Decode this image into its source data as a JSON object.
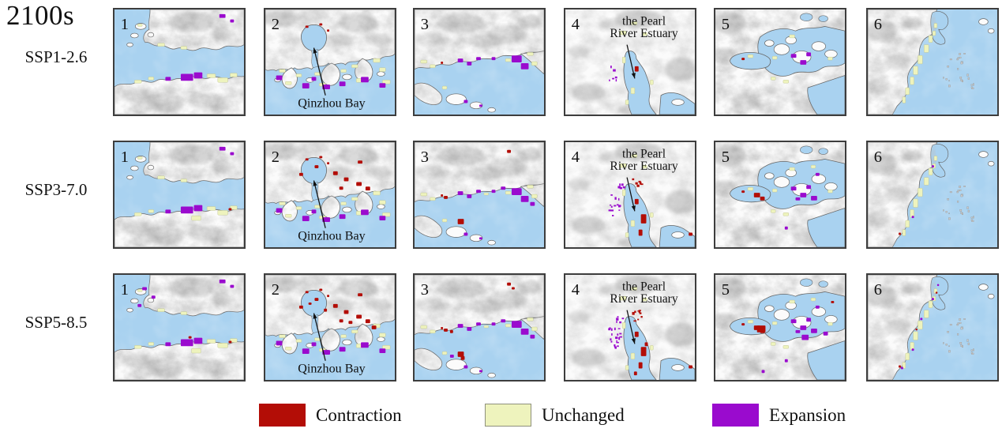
{
  "figure": {
    "title": "2100s",
    "scenarios": [
      "SSP1-2.6",
      "SSP3-7.0",
      "SSP5-8.5"
    ],
    "panels": [
      {
        "number": "1",
        "annotation": ""
      },
      {
        "number": "2",
        "annotation": "Qinzhou Bay"
      },
      {
        "number": "3",
        "annotation": ""
      },
      {
        "number": "4",
        "annotation": "the Pearl River Estuary",
        "annotation_lines": [
          "the Pearl",
          "River Estuary"
        ]
      },
      {
        "number": "5",
        "annotation": ""
      },
      {
        "number": "6",
        "annotation": ""
      }
    ],
    "legend": {
      "items": [
        {
          "label": "Contraction",
          "color": "#b30d06"
        },
        {
          "label": "Unchanged",
          "color": "#eef3bd",
          "border": "#8e907c"
        },
        {
          "label": "Expansion",
          "color": "#9a0bce"
        }
      ]
    },
    "map_colors": {
      "sea": "#a9d2f0",
      "land": "#fbfbfb",
      "terrain_shade": "#7e7e7e",
      "coastline": "#666666"
    }
  }
}
